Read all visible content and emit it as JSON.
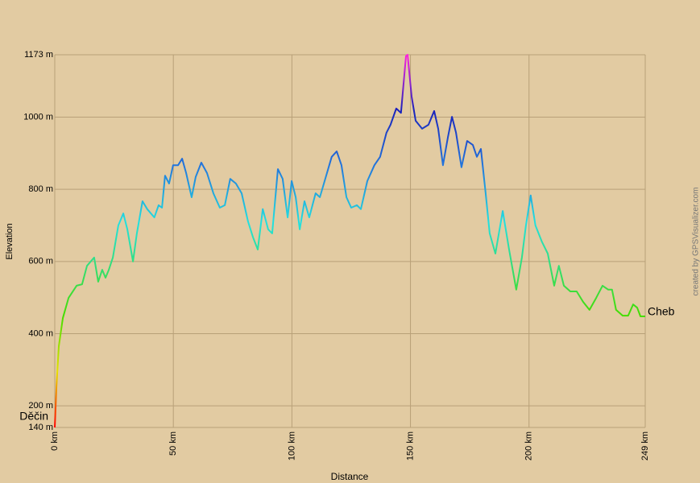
{
  "chart_data": {
    "type": "line",
    "x_label": "Distance",
    "y_label": "Elevation",
    "start_label": "Děčin",
    "end_label": "Cheb",
    "credit": "created by GPSVisualizer.com",
    "xlim": [
      0,
      249
    ],
    "ylim": [
      140,
      1173
    ],
    "grid": true,
    "xticks": [
      {
        "value": 0,
        "label": "0 km"
      },
      {
        "value": 50,
        "label": "50 km"
      },
      {
        "value": 100,
        "label": "100 km"
      },
      {
        "value": 150,
        "label": "150 km"
      },
      {
        "value": 200,
        "label": "200 km"
      },
      {
        "value": 249,
        "label": "249 km"
      }
    ],
    "yticks": [
      {
        "value": 140,
        "label": "140 m"
      },
      {
        "value": 200,
        "label": "200 m"
      },
      {
        "value": 400,
        "label": "400 m"
      },
      {
        "value": 600,
        "label": "600 m"
      },
      {
        "value": 800,
        "label": "800 m"
      },
      {
        "value": 1000,
        "label": "1000 m"
      },
      {
        "value": 1173,
        "label": "1173 m"
      }
    ],
    "x": [
      0,
      0.7,
      1.7,
      3.4,
      5.8,
      9.2,
      11.5,
      13.6,
      16.6,
      18.3,
      20,
      21.4,
      22.8,
      24.5,
      26.8,
      28.9,
      30.6,
      33,
      34.6,
      37,
      39,
      42,
      43.8,
      45.2,
      46.5,
      48.2,
      49.9,
      52,
      53.7,
      55.4,
      57.7,
      59.4,
      61.8,
      64.2,
      66.9,
      69.6,
      71.7,
      74,
      76.4,
      78.8,
      81.5,
      83.6,
      85.6,
      87.7,
      90,
      91.7,
      94.1,
      96.1,
      98.2,
      99.9,
      101.6,
      103.3,
      105.3,
      107.3,
      110,
      111.8,
      113.8,
      116.8,
      118.9,
      120.9,
      123,
      125,
      127.4,
      129.1,
      131.8,
      134.8,
      137.2,
      139.9,
      141.6,
      144,
      146,
      148.1,
      148.8,
      150.5,
      152.2,
      154.9,
      157.6,
      160,
      161.7,
      163.7,
      165.8,
      167.5,
      169.2,
      171.5,
      173.9,
      176.3,
      178,
      179.7,
      181.7,
      183.4,
      185.8,
      188.9,
      191.6,
      194.6,
      197,
      198.7,
      200.7,
      202.7,
      205.4,
      207.9,
      210.6,
      212.6,
      214.7,
      217.4,
      220.1,
      222.8,
      225.5,
      228.3,
      231,
      233.4,
      235,
      236.7,
      239.5,
      241.8,
      243.9,
      245.6,
      247,
      249
    ],
    "series": [
      {
        "name": "Elevation",
        "values": [
          140,
          254,
          365,
          443,
          499,
          533,
          537,
          588,
          611,
          544,
          577,
          555,
          577,
          611,
          700,
          733,
          689,
          600,
          678,
          767,
          745,
          722,
          756,
          749,
          838,
          816,
          867,
          867,
          885,
          845,
          778,
          834,
          874,
          845,
          789,
          749,
          756,
          829,
          816,
          789,
          711,
          667,
          633,
          745,
          689,
          678,
          856,
          829,
          722,
          823,
          778,
          689,
          767,
          722,
          789,
          778,
          823,
          890,
          905,
          867,
          778,
          749,
          756,
          745,
          823,
          867,
          890,
          957,
          979,
          1024,
          1012,
          1169,
          1173,
          1057,
          990,
          968,
          979,
          1017,
          968,
          867,
          945,
          1001,
          957,
          861,
          934,
          923,
          890,
          912,
          789,
          678,
          622,
          740,
          633,
          522,
          611,
          700,
          783,
          700,
          655,
          622,
          533,
          588,
          533,
          517,
          517,
          488,
          466,
          499,
          533,
          522,
          522,
          466,
          450,
          450,
          481,
          472,
          448,
          448
        ]
      }
    ]
  }
}
